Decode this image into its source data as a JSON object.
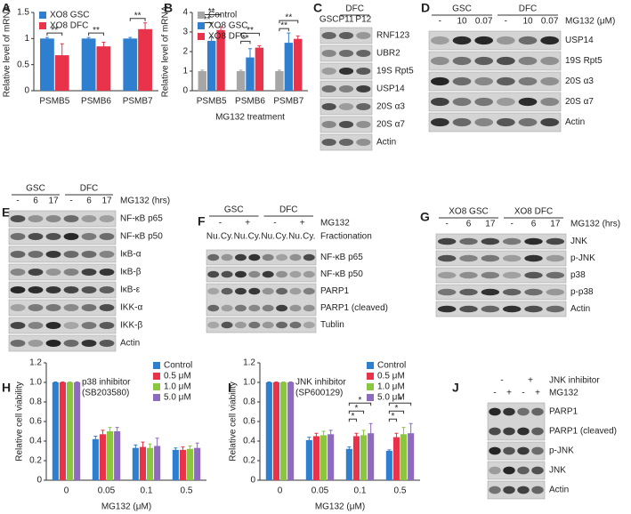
{
  "chart_data": [
    {
      "type": "bar",
      "panel": "A",
      "ylabel": "Relative level of mRNA",
      "categories": [
        "PSMB5",
        "PSMB6",
        "PSMB7"
      ],
      "series": [
        {
          "name": "XO8 GSC",
          "color": "#2f7fd0",
          "values": [
            1,
            1,
            1
          ],
          "errors": [
            0.02,
            0.02,
            0.02
          ]
        },
        {
          "name": "XO8 DFC",
          "color": "#e8334a",
          "values": [
            0.68,
            0.85,
            1.18
          ],
          "errors": [
            0.22,
            0.08,
            0.12
          ]
        }
      ],
      "significance": [
        [
          "**"
        ],
        [
          "**"
        ],
        [
          "**"
        ]
      ],
      "ylim": [
        0,
        1.5
      ],
      "yticks": [
        0,
        0.5,
        1,
        1.5
      ],
      "grid": false,
      "legend": "upper left"
    },
    {
      "type": "bar",
      "panel": "B",
      "ylabel": "Relative level of mRNA",
      "xlabel": "MG132 treatment",
      "categories": [
        "PSMB5",
        "PSMB6",
        "PSMB7"
      ],
      "series": [
        {
          "name": "Control",
          "color": "#a6a6a6",
          "values": [
            1,
            1,
            1
          ],
          "errors": [
            0.05,
            0.05,
            0.05
          ]
        },
        {
          "name": "XO8 GSC",
          "color": "#2f7fd0",
          "values": [
            2.55,
            1.7,
            2.45
          ],
          "errors": [
            0.2,
            0.45,
            0.5
          ]
        },
        {
          "name": "XO8 DFC",
          "color": "#e8334a",
          "values": [
            3.1,
            2.2,
            2.65
          ],
          "errors": [
            0.15,
            0.1,
            0.15
          ]
        }
      ],
      "significance": [
        [
          "**",
          "**"
        ],
        [
          "**",
          "**"
        ],
        [
          "**",
          "**"
        ]
      ],
      "ylim": [
        0,
        4
      ],
      "yticks": [
        0,
        1,
        2,
        3,
        4
      ],
      "grid": false,
      "legend": "upper left"
    },
    {
      "type": "bar",
      "panel": "H",
      "ylabel": "Relative cell viability",
      "xlabel": "MG132 (μM)",
      "annotation": [
        "p38 inhibitor",
        "(SB203580)"
      ],
      "categories": [
        "0",
        "0.05",
        "0.1",
        "0.5"
      ],
      "series": [
        {
          "name": "Control",
          "color": "#2f7fd0",
          "values": [
            1,
            0.42,
            0.33,
            0.31
          ],
          "errors": [
            0.005,
            0.03,
            0.03,
            0.02
          ]
        },
        {
          "name": "0.5 μM",
          "color": "#e8334a",
          "values": [
            1,
            0.47,
            0.34,
            0.31
          ],
          "errors": [
            0.005,
            0.04,
            0.05,
            0.03
          ]
        },
        {
          "name": "1.0 μM",
          "color": "#8cc63f",
          "values": [
            1,
            0.5,
            0.33,
            0.32
          ],
          "errors": [
            0.005,
            0.04,
            0.04,
            0.03
          ]
        },
        {
          "name": "5.0 μM",
          "color": "#8e6bbf",
          "values": [
            1,
            0.5,
            0.35,
            0.33
          ],
          "errors": [
            0.005,
            0.04,
            0.08,
            0.05
          ]
        }
      ],
      "significance": [
        [],
        [],
        [],
        []
      ],
      "ylim": [
        0,
        1.2
      ],
      "yticks": [
        0,
        0.2,
        0.4,
        0.6,
        0.8,
        {
          "value": 1,
          "label": "1.0"
        },
        1.2
      ],
      "grid": false,
      "legend": "upper right"
    },
    {
      "type": "bar",
      "panel": "I",
      "ylabel": "Relative cell viability",
      "xlabel": "MG132 (μM)",
      "annotation": [
        "JNK inhibitor",
        "(SP600129)"
      ],
      "categories": [
        "0",
        "0.05",
        "0.1",
        "0.5"
      ],
      "series": [
        {
          "name": "Control",
          "color": "#2f7fd0",
          "values": [
            1,
            0.41,
            0.32,
            0.3
          ],
          "errors": [
            0.005,
            0.03,
            0.02,
            0.01
          ]
        },
        {
          "name": "0.5 μM",
          "color": "#e8334a",
          "values": [
            1,
            0.45,
            0.45,
            0.44
          ],
          "errors": [
            0.005,
            0.03,
            0.03,
            0.04
          ]
        },
        {
          "name": "1.0 μM",
          "color": "#8cc63f",
          "values": [
            1,
            0.46,
            0.46,
            0.47
          ],
          "errors": [
            0.005,
            0.04,
            0.05,
            0.07
          ]
        },
        {
          "name": "5.0 μM",
          "color": "#8e6bbf",
          "values": [
            1,
            0.47,
            0.48,
            0.48
          ],
          "errors": [
            0.005,
            0.04,
            0.1,
            0.1
          ]
        }
      ],
      "significance": [
        [],
        [],
        [
          "*",
          "*",
          "*"
        ],
        [
          "*",
          "*",
          "*"
        ]
      ],
      "ylim": [
        0,
        1.2
      ],
      "yticks": [
        0,
        0.2,
        0.4,
        0.6,
        0.8,
        {
          "value": 1,
          "label": "1.0"
        },
        1.2
      ],
      "grid": false,
      "legend": "upper right"
    }
  ],
  "blots": [
    {
      "panel": "C",
      "groups": [
        "DFC"
      ],
      "header_rows": [
        {
          "labels": [
            "GSC",
            "P11",
            "P12"
          ]
        }
      ],
      "rows": [
        [
          "RNF123"
        ],
        [
          "UBR2"
        ],
        [
          "19S Rpt5"
        ],
        [
          "USP14"
        ],
        [
          "20S α3"
        ],
        [
          "20S α7"
        ],
        [
          "Actin"
        ]
      ]
    },
    {
      "panel": "D",
      "groups": [
        "GSC",
        "DFC"
      ],
      "header_rows": [
        {
          "title": "MG132 (μM)",
          "labels": [
            "-",
            "10",
            "0.07",
            "-",
            "10",
            "0.07"
          ]
        }
      ],
      "rows": [
        [
          "USP14"
        ],
        [
          "19S Rpt5"
        ],
        [
          "20S α3"
        ],
        [
          "20S α7"
        ],
        [
          "Actin"
        ]
      ]
    },
    {
      "panel": "E",
      "groups": [
        "GSC",
        "DFC"
      ],
      "header_rows": [
        {
          "title": "MG132 (hrs)",
          "labels": [
            "-",
            "6",
            "17",
            "-",
            "6",
            "17"
          ]
        }
      ],
      "rows": [
        [
          "NF-κB p65"
        ],
        [
          "NF-κB p50"
        ],
        [
          "IκB-α"
        ],
        [
          "IκB-β"
        ],
        [
          "IκB-ε"
        ],
        [
          "IKK-α"
        ],
        [
          "IKK-β"
        ],
        [
          "Actin"
        ]
      ]
    },
    {
      "panel": "F",
      "groups": [
        "GSC",
        "DFC"
      ],
      "header_rows": [
        {
          "title": "MG132",
          "labels": [
            "-",
            "+",
            "-",
            "+"
          ]
        },
        {
          "title": "Fractionation",
          "labels": [
            "Nu.",
            "Cy.",
            "Nu.",
            "Cy.",
            "Nu.",
            "Cy.",
            "Nu.",
            "Cy."
          ]
        }
      ],
      "rows": [
        [
          "NF-κB p65"
        ],
        [
          "NF-κB p50"
        ],
        [
          "PARP1",
          "PARP1 (cleaved)"
        ],
        [
          "Tublin"
        ]
      ]
    },
    {
      "panel": "G",
      "groups": [
        "XO8 GSC",
        "XO8 DFC"
      ],
      "header_rows": [
        {
          "title": "MG132 (hrs)",
          "labels": [
            "-",
            "6",
            "17",
            "-",
            "6",
            "17"
          ]
        }
      ],
      "rows": [
        [
          "JNK"
        ],
        [
          "p-JNK"
        ],
        [
          "p38"
        ],
        [
          "p-p38"
        ],
        [
          "Actin"
        ]
      ]
    },
    {
      "panel": "J",
      "header_rows": [
        {
          "title": "JNK inhibitor",
          "labels": [
            "-",
            "+"
          ]
        },
        {
          "title": "MG132",
          "labels": [
            "-",
            "+",
            "-",
            "+"
          ]
        }
      ],
      "rows": [
        [
          "PARP1",
          "PARP1 (cleaved)"
        ],
        [
          "p-JNK"
        ],
        [
          "JNK"
        ],
        [
          "Actin"
        ]
      ]
    }
  ]
}
